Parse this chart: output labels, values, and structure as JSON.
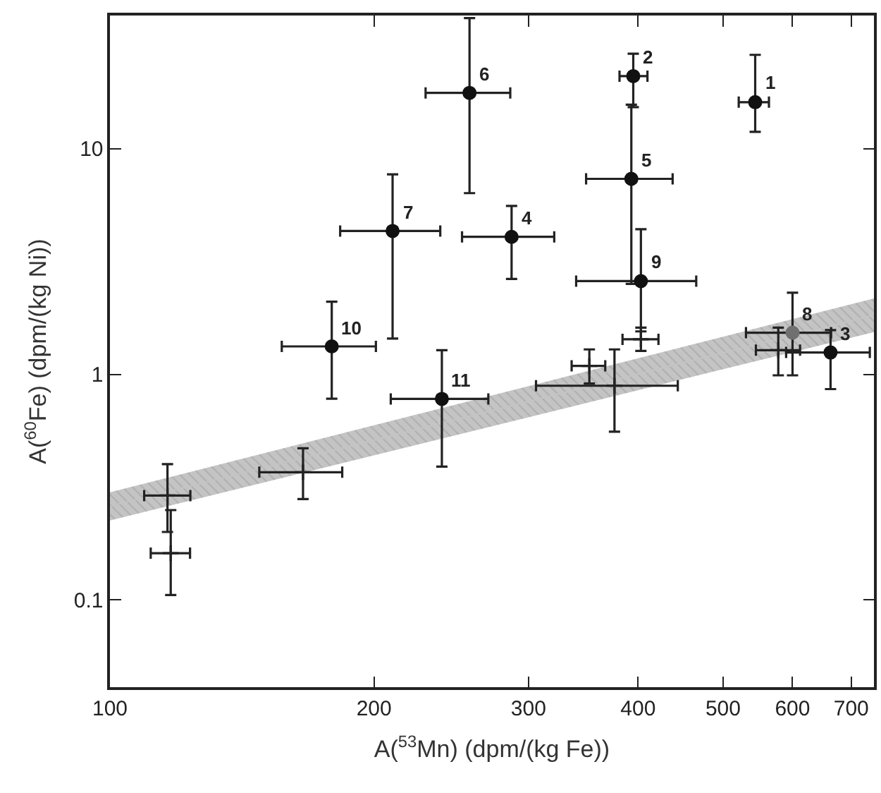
{
  "chart_data": {
    "type": "scatter",
    "xlabel": "A($^{53}$Mn) (dpm/(kg Fe))",
    "ylabel": "A($^{60}$Fe) (dpm/(kg Ni))",
    "log": "xy",
    "xlim": [
      100,
      743
    ],
    "ylim": [
      0.041,
      39
    ],
    "xticks": [
      100,
      200,
      300,
      400,
      500,
      600,
      700
    ],
    "yticks": [
      0.1,
      1,
      10
    ],
    "series": [
      {
        "type": "line",
        "color": "#c4c4c4",
        "x": [
          100,
          743
        ],
        "values": [
          0.26,
          1.83
        ],
        "lower": [
          0.225,
          1.54
        ],
        "upper": [
          0.3,
          2.17
        ]
      },
      {
        "marker": "cross",
        "color": "#222222",
        "x": [
          403,
          578,
          352,
          376,
          166,
          116.3,
          117.3
        ],
        "values": [
          1.43,
          1.28,
          1.09,
          0.89,
          0.368,
          0.29,
          0.161
        ],
        "errors": [
          [
            1.27,
            1.61
          ],
          [
            0.99,
            1.61
          ],
          [
            0.91,
            1.29
          ],
          [
            0.557,
            1.29
          ],
          [
            0.28,
            0.47
          ],
          [
            0.2,
            0.4
          ],
          [
            0.105,
            0.25
          ]
        ],
        "xerrors": [
          [
            384,
            422
          ],
          [
            545,
            612
          ],
          [
            336,
            367
          ],
          [
            306,
            444
          ],
          [
            148,
            184
          ],
          [
            109.4,
            123.5
          ],
          [
            111.3,
            123.4
          ]
        ]
      },
      {
        "marker": "circle",
        "color": "#111111",
        "x": [
          544,
          395,
          663,
          287,
          393,
          257,
          210,
          403,
          179,
          239
        ],
        "values": [
          16.1,
          21.0,
          1.25,
          4.07,
          7.36,
          17.7,
          4.32,
          2.59,
          1.33,
          0.778
        ],
        "errors": [
          [
            11.9,
            26.1
          ],
          [
            15.3,
            26.4
          ],
          [
            0.86,
            1.57
          ],
          [
            2.65,
            5.58
          ],
          [
            2.52,
            15.7
          ],
          [
            6.36,
            38
          ],
          [
            1.44,
            7.7
          ],
          [
            1.55,
            4.4
          ],
          [
            0.78,
            2.1
          ],
          [
            0.39,
            1.28
          ]
        ],
        "xerrors": [
          [
            521,
            564
          ],
          [
            381,
            410
          ],
          [
            590,
            735
          ],
          [
            252,
            321
          ],
          [
            349,
            438
          ],
          [
            229,
            286
          ],
          [
            183,
            238
          ],
          [
            340,
            466
          ],
          [
            157,
            201
          ],
          [
            209,
            270
          ]
        ]
      },
      {
        "marker": "circle",
        "color": "#707070",
        "x": [
          600
        ],
        "values": [
          1.53
        ],
        "errors": [
          [
            0.99,
            2.3
          ]
        ],
        "xerrors": [
          [
            531,
            664
          ]
        ]
      }
    ],
    "annotations": [
      {
        "text": "1",
        "x": 544,
        "y": 16.1
      },
      {
        "text": "2",
        "x": 395,
        "y": 21.0
      },
      {
        "text": "3",
        "x": 663,
        "y": 1.25
      },
      {
        "text": "4",
        "x": 287,
        "y": 4.07
      },
      {
        "text": "5",
        "x": 393,
        "y": 7.36
      },
      {
        "text": "6",
        "x": 257,
        "y": 17.7
      },
      {
        "text": "7",
        "x": 210,
        "y": 4.32
      },
      {
        "text": "8",
        "x": 600,
        "y": 1.53
      },
      {
        "text": "9",
        "x": 403,
        "y": 2.59
      },
      {
        "text": "10",
        "x": 179,
        "y": 1.33
      },
      {
        "text": "11",
        "x": 239,
        "y": 0.778
      }
    ]
  }
}
